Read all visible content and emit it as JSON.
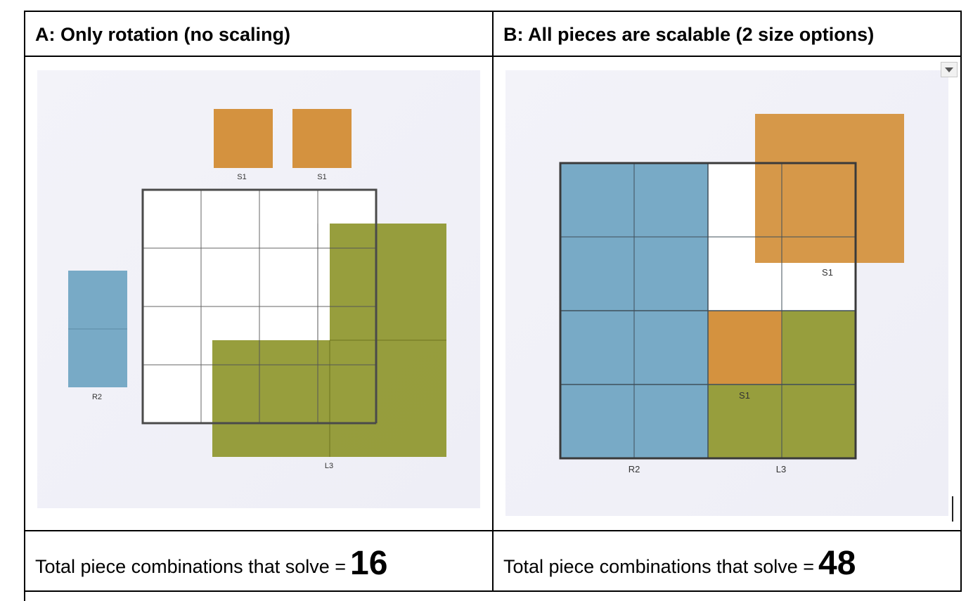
{
  "table": {
    "header_a": "A: Only rotation (no scaling)",
    "header_b": "B: All pieces are scalable (2 size options)",
    "footer_a_label": "Total piece combinations that solve =",
    "footer_a_value": "16",
    "footer_b_label": "Total piece combinations that solve =",
    "footer_b_value": "48"
  },
  "panel_a": {
    "labels": {
      "s1_left": "S1",
      "s1_right": "S1",
      "r2": "R2",
      "l3": "L3"
    }
  },
  "panel_b": {
    "labels": {
      "s1_big": "S1",
      "s1_small": "S1",
      "r2": "R2",
      "l3": "L3"
    }
  },
  "colors": {
    "square_piece": "#d4923f",
    "rect_piece": "#78aac6",
    "l_piece": "#8c9428",
    "grid_line": "#555555",
    "panel_bg": "#f1f1f8"
  },
  "icons": {
    "dropdown": "chevron-down-icon"
  }
}
